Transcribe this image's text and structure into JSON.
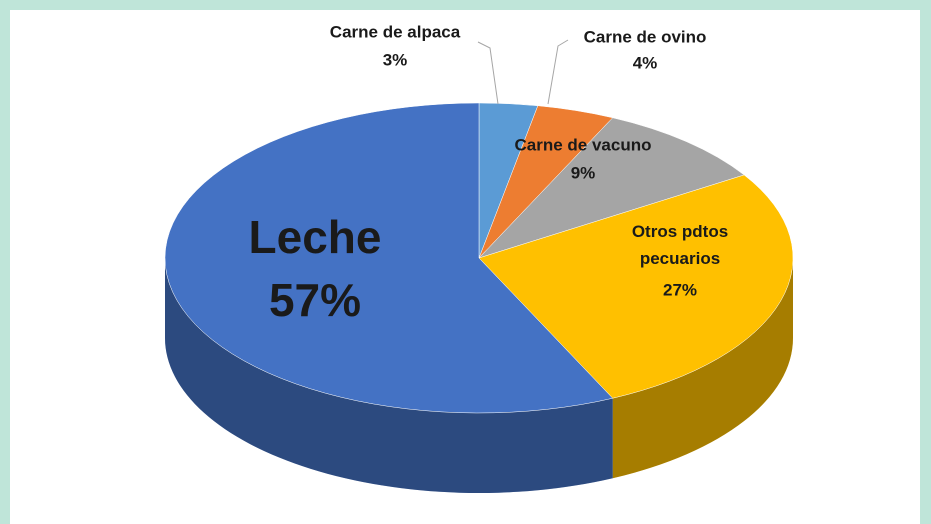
{
  "chart_data": {
    "type": "pie",
    "categories": [
      "Carne de alpaca",
      "Carne de ovino",
      "Carne de vacuno",
      "Otros pdtos pecuarios",
      "Leche"
    ],
    "values": [
      3,
      4,
      9,
      27,
      57
    ],
    "value_labels": [
      "3%",
      "4%",
      "9%",
      "27%",
      "57%"
    ],
    "colors": [
      "#5b9bd5",
      "#ed7d31",
      "#a5a5a5",
      "#ffc000",
      "#4472c4"
    ]
  }
}
